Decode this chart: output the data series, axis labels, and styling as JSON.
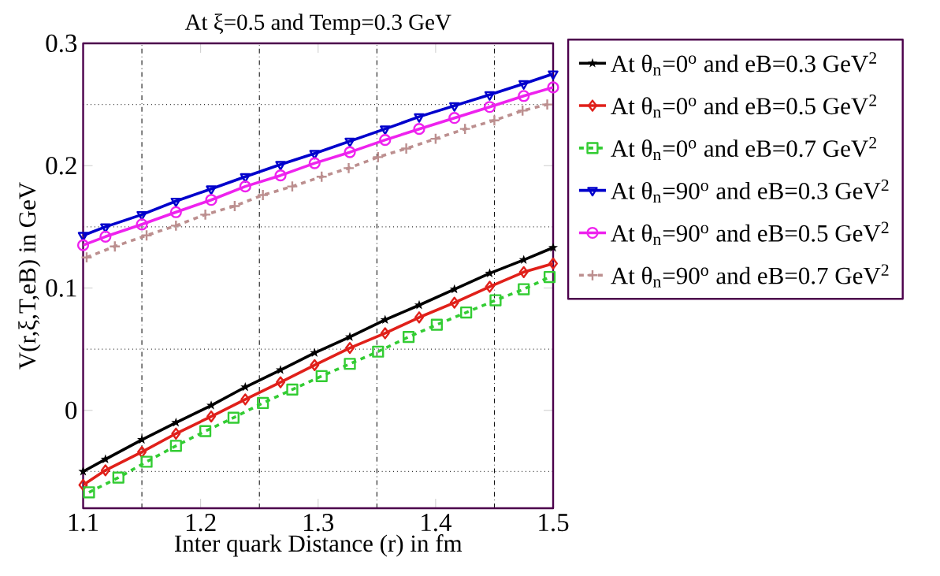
{
  "chart_data": {
    "type": "line",
    "title": "At ξ=0.5 and Temp=0.3 GeV",
    "xlabel": "Inter quark Distance (r) in fm",
    "ylabel": "V(r,ξ,T,eB) in GeV",
    "xlim": [
      1.1,
      1.5
    ],
    "ylim": [
      -0.08,
      0.3
    ],
    "xticks": [
      1.1,
      {
        "value": 1.15,
        "label": null
      },
      1.2,
      {
        "value": 1.25,
        "label": null
      },
      1.3,
      {
        "value": 1.35,
        "label": null
      },
      1.4,
      {
        "value": 1.45,
        "label": null
      },
      1.5
    ],
    "yticks": [
      {
        "value": -0.05,
        "label": null
      },
      0,
      {
        "value": 0.05,
        "label": null
      },
      0.1,
      {
        "value": 0.15,
        "label": null
      },
      0.2,
      {
        "value": 0.25,
        "label": null
      },
      0.3
    ],
    "grid": true,
    "legend": "right",
    "series": [
      {
        "name": "At θ$_{n}$=0$^{o}$ and eB=0.3 GeV$^{2}$",
        "color": "#000000",
        "marker": "star",
        "line_style": "solid",
        "x": [
          1.1,
          1.119,
          1.15,
          1.179,
          1.209,
          1.238,
          1.268,
          1.297,
          1.327,
          1.357,
          1.386,
          1.416,
          1.446,
          1.475,
          1.5
        ],
        "values": [
          -0.05,
          -0.04,
          -0.024,
          -0.01,
          0.004,
          0.019,
          0.033,
          0.047,
          0.06,
          0.074,
          0.086,
          0.099,
          0.112,
          0.123,
          0.133
        ]
      },
      {
        "name": "At θ$_{n}$=0$^{o}$ and eB=0.5 GeV$^{2}$",
        "color": "#e0201a",
        "marker": "diamond",
        "line_style": "solid",
        "x": [
          1.1,
          1.119,
          1.15,
          1.179,
          1.209,
          1.238,
          1.268,
          1.297,
          1.327,
          1.357,
          1.386,
          1.416,
          1.446,
          1.475,
          1.5
        ],
        "values": [
          -0.061,
          -0.049,
          -0.034,
          -0.019,
          -0.005,
          0.009,
          0.023,
          0.037,
          0.051,
          0.063,
          0.076,
          0.088,
          0.101,
          0.113,
          0.12
        ]
      },
      {
        "name": "At θ$_{n}$=0$^{o}$ and eB=0.7 GeV$^{2}$",
        "color": "#33cc33",
        "marker": "square",
        "line_style": "dashed",
        "x": [
          1.105,
          1.13,
          1.154,
          1.179,
          1.204,
          1.228,
          1.253,
          1.278,
          1.303,
          1.327,
          1.351,
          1.377,
          1.401,
          1.426,
          1.451,
          1.475,
          1.497
        ],
        "values": [
          -0.067,
          -0.055,
          -0.042,
          -0.029,
          -0.017,
          -0.006,
          0.006,
          0.017,
          0.028,
          0.038,
          0.048,
          0.06,
          0.07,
          0.08,
          0.09,
          0.099,
          0.109
        ]
      },
      {
        "name": "At θ$_{n}$=90$^{o}$ and eB=0.3 GeV$^{2}$",
        "color": "#0000cc",
        "marker": "triangle",
        "line_style": "solid",
        "x": [
          1.1,
          1.119,
          1.15,
          1.179,
          1.209,
          1.238,
          1.268,
          1.297,
          1.327,
          1.357,
          1.386,
          1.416,
          1.446,
          1.475,
          1.5
        ],
        "values": [
          0.143,
          0.15,
          0.16,
          0.171,
          0.181,
          0.191,
          0.201,
          0.21,
          0.22,
          0.23,
          0.24,
          0.249,
          0.258,
          0.267,
          0.275
        ]
      },
      {
        "name": "At θ$_{n}$=90$^{o}$ and eB=0.5 GeV$^{2}$",
        "color": "#ee22ee",
        "marker": "circle",
        "line_style": "solid",
        "x": [
          1.1,
          1.119,
          1.15,
          1.179,
          1.209,
          1.238,
          1.268,
          1.297,
          1.327,
          1.357,
          1.386,
          1.416,
          1.446,
          1.475,
          1.5
        ],
        "values": [
          0.135,
          0.142,
          0.152,
          0.162,
          0.172,
          0.183,
          0.192,
          0.202,
          0.211,
          0.221,
          0.23,
          0.239,
          0.248,
          0.257,
          0.264
        ]
      },
      {
        "name": "At θ$_{n}$=90$^{o}$ and eB=0.7 GeV$^{2}$",
        "color": "#bc8f8f",
        "marker": "cross",
        "line_style": "dashed",
        "x": [
          1.103,
          1.127,
          1.154,
          1.179,
          1.204,
          1.229,
          1.253,
          1.278,
          1.303,
          1.326,
          1.351,
          1.375,
          1.4,
          1.425,
          1.45,
          1.474,
          1.495
        ],
        "values": [
          0.125,
          0.134,
          0.143,
          0.151,
          0.16,
          0.167,
          0.176,
          0.183,
          0.191,
          0.198,
          0.207,
          0.214,
          0.222,
          0.23,
          0.237,
          0.245,
          0.25
        ]
      }
    ]
  }
}
